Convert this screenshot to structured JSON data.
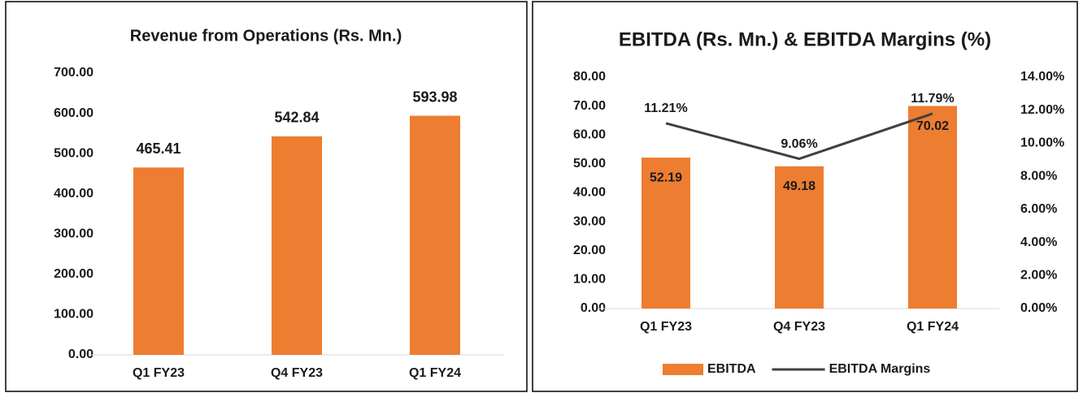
{
  "chart_data": [
    {
      "type": "bar",
      "title": "Revenue from Operations (Rs. Mn.)",
      "categories": [
        "Q1 FY23",
        "Q4 FY23",
        "Q1 FY24"
      ],
      "values": [
        465.41,
        542.84,
        593.98
      ],
      "color": "#ed7d31",
      "ylim": [
        0,
        700
      ],
      "yticks": [
        {
          "value": 0,
          "label": "0.00"
        },
        {
          "value": 100,
          "label": "100.00"
        },
        {
          "value": 200,
          "label": "200.00"
        },
        {
          "value": 300,
          "label": "300.00"
        },
        {
          "value": 400,
          "label": "400.00"
        },
        {
          "value": 500,
          "label": "500.00"
        },
        {
          "value": 600,
          "label": "600.00"
        },
        {
          "value": 700,
          "label": "700.00"
        }
      ]
    },
    {
      "type": "combo",
      "title": "EBITDA (Rs. Mn.) & EBITDA Margins (%)",
      "categories": [
        "Q1 FY23",
        "Q4 FY23",
        "Q1 FY24"
      ],
      "series": [
        {
          "name": "EBITDA",
          "color": "#ed7d31",
          "values": [
            52.19,
            49.18,
            70.02
          ]
        },
        {
          "name": "EBITDA Margins",
          "color": "#404040",
          "axis": "y2",
          "values": [
            11.21,
            9.06,
            11.79
          ],
          "value_labels": [
            "11.21%",
            "9.06%",
            "11.79%"
          ]
        }
      ],
      "ylim": [
        0,
        80
      ],
      "yticks": [
        {
          "value": 0,
          "label": "0.00"
        },
        {
          "value": 10,
          "label": "10.00"
        },
        {
          "value": 20,
          "label": "20.00"
        },
        {
          "value": 30,
          "label": "30.00"
        },
        {
          "value": 40,
          "label": "40.00"
        },
        {
          "value": 50,
          "label": "50.00"
        },
        {
          "value": 60,
          "label": "60.00"
        },
        {
          "value": 70,
          "label": "70.00"
        },
        {
          "value": 80,
          "label": "80.00"
        }
      ],
      "y2lim": [
        0,
        14
      ],
      "y2ticks": [
        {
          "value": 0,
          "label": "0.00%"
        },
        {
          "value": 2,
          "label": "2.00%"
        },
        {
          "value": 4,
          "label": "4.00%"
        },
        {
          "value": 6,
          "label": "6.00%"
        },
        {
          "value": 8,
          "label": "8.00%"
        },
        {
          "value": 10,
          "label": "10.00%"
        },
        {
          "value": 12,
          "label": "12.00%"
        },
        {
          "value": 14,
          "label": "14.00%"
        }
      ],
      "legend": "bottom"
    }
  ]
}
